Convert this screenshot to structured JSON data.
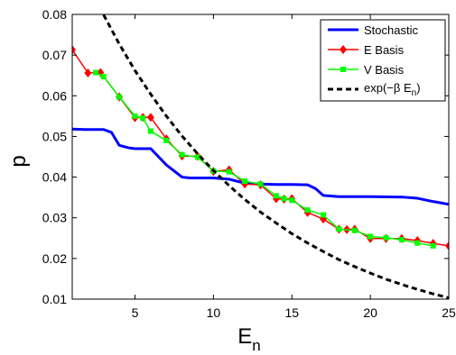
{
  "chart_data": {
    "type": "line",
    "xlabel": "E",
    "xlabel_sub": "n",
    "ylabel": "p",
    "xlim": [
      1,
      25
    ],
    "ylim": [
      0.01,
      0.08
    ],
    "x_ticks": [
      5,
      10,
      15,
      20,
      25
    ],
    "y_ticks": [
      0.01,
      0.02,
      0.03,
      0.04,
      0.05,
      0.06,
      0.07,
      0.08
    ],
    "x_tick_labels": [
      "5",
      "10",
      "15",
      "20",
      "25"
    ],
    "y_tick_labels": [
      "0.01",
      "0.02",
      "0.03",
      "0.04",
      "0.05",
      "0.06",
      "0.07",
      "0.08"
    ],
    "grid": false,
    "legend_position": "top-right",
    "legend": {
      "stochastic": "Stochastic",
      "e_basis": "E Basis",
      "v_basis": "V Basis",
      "exp_prefix": "exp(−β E",
      "exp_sub": "n",
      "exp_suffix": ")"
    },
    "series": [
      {
        "name": "Stochastic",
        "color": "#0000ff",
        "style": "solid",
        "marker": "none",
        "x": [
          1,
          1.8,
          2,
          3,
          3.5,
          4,
          4.6,
          5,
          6,
          6.5,
          7,
          7.5,
          8,
          8.5,
          10,
          11,
          12,
          13,
          14,
          15,
          16,
          16.5,
          17,
          18,
          19,
          20,
          22,
          23,
          24,
          25
        ],
        "y": [
          0.0518,
          0.0517,
          0.0517,
          0.0517,
          0.051,
          0.0478,
          0.0472,
          0.047,
          0.047,
          0.045,
          0.043,
          0.0415,
          0.04,
          0.0398,
          0.0398,
          0.0395,
          0.0385,
          0.0383,
          0.0382,
          0.0382,
          0.0381,
          0.0372,
          0.0355,
          0.0352,
          0.0352,
          0.0352,
          0.0351,
          0.0348,
          0.034,
          0.0333
        ]
      },
      {
        "name": "E Basis",
        "color": "#ff0000",
        "style": "solid",
        "marker": "diamond",
        "x": [
          1,
          2,
          2.8,
          4,
          5,
          5.5,
          6,
          7,
          8,
          9,
          10,
          11,
          12,
          13,
          14,
          14.5,
          15,
          16,
          17,
          18,
          18.5,
          19,
          20,
          21,
          22,
          23,
          24,
          25
        ],
        "y": [
          0.0713,
          0.0656,
          0.0657,
          0.0597,
          0.0546,
          0.0547,
          0.0547,
          0.0494,
          0.0452,
          0.0451,
          0.0414,
          0.0418,
          0.0383,
          0.0381,
          0.0347,
          0.0346,
          0.0347,
          0.0313,
          0.0297,
          0.0272,
          0.0271,
          0.0272,
          0.0249,
          0.0249,
          0.0249,
          0.0244,
          0.0237,
          0.0231
        ]
      },
      {
        "name": "V Basis",
        "color": "#00ff00",
        "style": "solid",
        "marker": "square",
        "x": [
          2.5,
          3,
          4,
          5,
          5.5,
          6,
          7,
          8,
          9,
          10,
          11,
          12,
          13,
          14,
          14.5,
          15,
          16,
          17,
          18,
          19,
          20,
          21,
          22,
          23,
          24
        ],
        "y": [
          0.0657,
          0.0647,
          0.0597,
          0.055,
          0.0545,
          0.0513,
          0.049,
          0.0455,
          0.0449,
          0.0415,
          0.0413,
          0.039,
          0.0383,
          0.0354,
          0.0347,
          0.0343,
          0.0319,
          0.0307,
          0.0272,
          0.0269,
          0.0254,
          0.0251,
          0.0246,
          0.0238,
          0.0231
        ]
      },
      {
        "name": "exp(−β En)",
        "color": "#000000",
        "style": "dashed",
        "marker": "none",
        "x": [
          3,
          4,
          5,
          6,
          7,
          8,
          9,
          10,
          11,
          12,
          13,
          14,
          15,
          16,
          17,
          18,
          19,
          20,
          21,
          22,
          23,
          24,
          25
        ],
        "y": [
          0.0799,
          0.0727,
          0.0662,
          0.0604,
          0.055,
          0.0501,
          0.0457,
          0.0416,
          0.0379,
          0.0345,
          0.0314,
          0.0287,
          0.0261,
          0.0238,
          0.0217,
          0.0197,
          0.018,
          0.0164,
          0.0149,
          0.0136,
          0.0124,
          0.0113,
          0.0103
        ]
      }
    ]
  }
}
